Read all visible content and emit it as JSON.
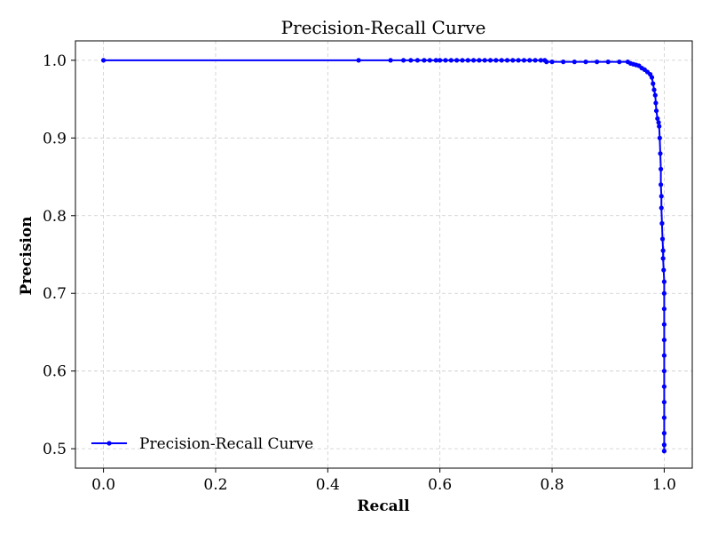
{
  "chart_data": {
    "type": "line",
    "title": "Precision-Recall Curve",
    "xlabel": "Recall",
    "ylabel": "Precision",
    "xlim": [
      -0.05,
      1.05
    ],
    "ylim": [
      0.475,
      1.025
    ],
    "xticks": [
      0.0,
      0.2,
      0.4,
      0.6,
      0.8,
      1.0
    ],
    "xtick_labels": [
      "0.0",
      "0.2",
      "0.4",
      "0.6",
      "0.8",
      "1.0"
    ],
    "yticks": [
      0.5,
      0.6,
      0.7,
      0.8,
      0.9,
      1.0
    ],
    "ytick_labels": [
      "0.5",
      "0.6",
      "0.7",
      "0.8",
      "0.9",
      "1.0"
    ],
    "grid": true,
    "legend_position": "lower-left",
    "series": [
      {
        "name": "Precision-Recall Curve",
        "color": "#0000ff",
        "marker": "circle",
        "x": [
          0.0,
          0.455,
          0.512,
          0.535,
          0.548,
          0.56,
          0.572,
          0.582,
          0.593,
          0.6,
          0.61,
          0.62,
          0.63,
          0.64,
          0.65,
          0.66,
          0.67,
          0.68,
          0.69,
          0.7,
          0.71,
          0.72,
          0.73,
          0.74,
          0.75,
          0.76,
          0.77,
          0.78,
          0.787,
          0.79,
          0.8,
          0.82,
          0.84,
          0.86,
          0.88,
          0.9,
          0.92,
          0.935,
          0.94,
          0.945,
          0.95,
          0.955,
          0.96,
          0.965,
          0.97,
          0.975,
          0.978,
          0.98,
          0.982,
          0.984,
          0.985,
          0.986,
          0.988,
          0.99,
          0.991,
          0.992,
          0.993,
          0.994,
          0.994,
          0.995,
          0.995,
          0.996,
          0.997,
          0.998,
          0.998,
          0.999,
          1.0,
          1.0,
          1.0,
          1.0,
          1.0,
          1.0,
          1.0,
          1.0,
          1.0,
          1.0,
          1.0,
          1.0,
          1.0
        ],
        "y": [
          1.0,
          1.0,
          1.0,
          1.0,
          1.0,
          1.0,
          1.0,
          1.0,
          1.0,
          1.0,
          1.0,
          1.0,
          1.0,
          1.0,
          1.0,
          1.0,
          1.0,
          1.0,
          1.0,
          1.0,
          1.0,
          1.0,
          1.0,
          1.0,
          1.0,
          1.0,
          1.0,
          1.0,
          1.0,
          0.998,
          0.998,
          0.998,
          0.998,
          0.998,
          0.998,
          0.998,
          0.998,
          0.998,
          0.996,
          0.995,
          0.994,
          0.993,
          0.99,
          0.988,
          0.985,
          0.982,
          0.978,
          0.97,
          0.962,
          0.955,
          0.945,
          0.935,
          0.925,
          0.92,
          0.915,
          0.9,
          0.88,
          0.86,
          0.84,
          0.825,
          0.81,
          0.79,
          0.77,
          0.755,
          0.745,
          0.73,
          0.715,
          0.7,
          0.68,
          0.66,
          0.64,
          0.62,
          0.6,
          0.58,
          0.56,
          0.54,
          0.52,
          0.505,
          0.497
        ]
      }
    ]
  }
}
